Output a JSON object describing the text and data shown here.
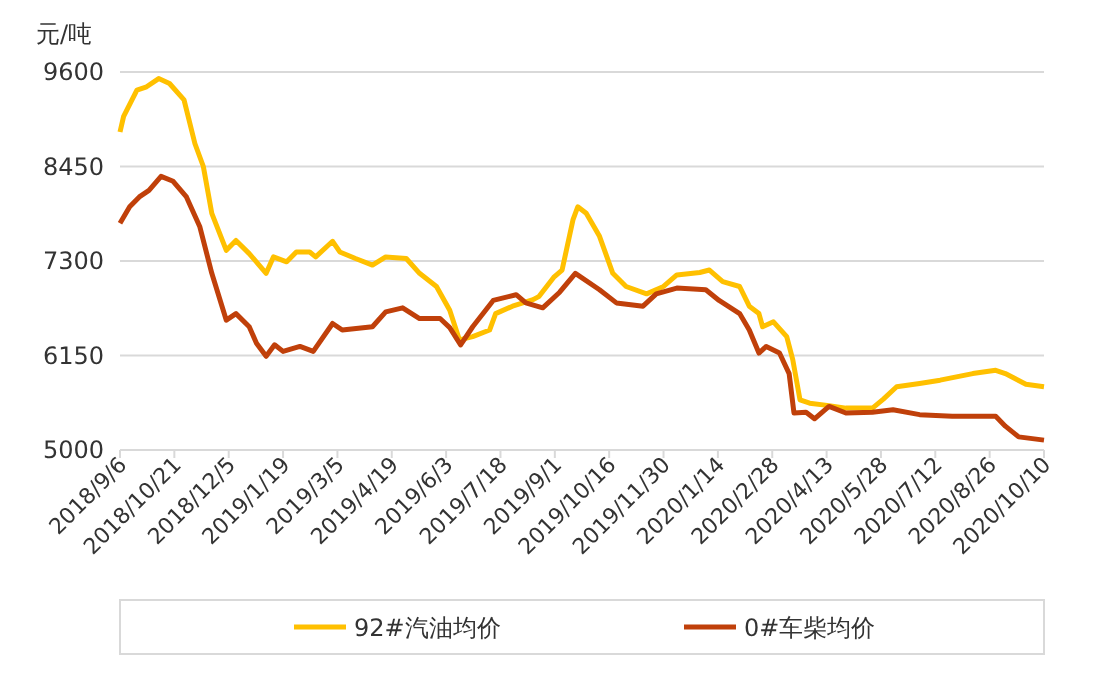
{
  "chart_data": {
    "type": "line",
    "ylabel": "元/吨",
    "ylim": [
      5000,
      9600
    ],
    "yticks": [
      5000,
      6150,
      7300,
      8450,
      9600
    ],
    "grid": "y",
    "legend": "bottom",
    "xlim": [
      "2018-09-06",
      "2020-10-10"
    ],
    "xticks": [
      {
        "value": "2018-09-06",
        "label": "2018/9/6"
      },
      {
        "value": "2018-10-21",
        "label": "2018/10/21"
      },
      {
        "value": "2018-12-05",
        "label": "2018/12/5"
      },
      {
        "value": "2019-01-19",
        "label": "2019/1/19"
      },
      {
        "value": "2019-03-05",
        "label": "2019/3/5"
      },
      {
        "value": "2019-04-19",
        "label": "2019/4/19"
      },
      {
        "value": "2019-06-03",
        "label": "2019/6/3"
      },
      {
        "value": "2019-07-18",
        "label": "2019/7/18"
      },
      {
        "value": "2019-09-01",
        "label": "2019/9/1"
      },
      {
        "value": "2019-10-16",
        "label": "2019/10/16"
      },
      {
        "value": "2019-11-30",
        "label": "2019/11/30"
      },
      {
        "value": "2020-01-14",
        "label": "2020/1/14"
      },
      {
        "value": "2020-02-28",
        "label": "2020/2/28"
      },
      {
        "value": "2020-04-13",
        "label": "2020/4/13"
      },
      {
        "value": "2020-05-28",
        "label": "2020/5/28"
      },
      {
        "value": "2020-07-12",
        "label": "2020/7/12"
      },
      {
        "value": "2020-08-26",
        "label": "2020/8/26"
      },
      {
        "value": "2020-10-10",
        "label": "2020/10/10"
      }
    ],
    "series": [
      {
        "name": "92#汽油均价",
        "color": "#ffc000",
        "x": [
          "2018-09-06",
          "2018-09-09",
          "2018-09-20",
          "2018-09-28",
          "2018-10-08",
          "2018-10-17",
          "2018-10-29",
          "2018-11-07",
          "2018-11-14",
          "2018-11-21",
          "2018-12-03",
          "2018-12-11",
          "2018-12-22",
          "2019-01-05",
          "2019-01-11",
          "2019-01-22",
          "2019-01-30",
          "2019-02-10",
          "2019-02-15",
          "2019-03-01",
          "2019-03-07",
          "2019-03-20",
          "2019-04-03",
          "2019-04-14",
          "2019-05-01",
          "2019-05-12",
          "2019-05-26",
          "2019-06-06",
          "2019-06-14",
          "2019-06-25",
          "2019-07-09",
          "2019-07-14",
          "2019-07-28",
          "2019-08-14",
          "2019-08-19",
          "2019-08-31",
          "2019-09-07",
          "2019-09-16",
          "2019-09-20",
          "2019-09-27",
          "2019-10-08",
          "2019-10-19",
          "2019-10-30",
          "2019-11-16",
          "2019-11-30",
          "2019-12-11",
          "2019-12-30",
          "2020-01-07",
          "2020-01-18",
          "2020-02-01",
          "2020-02-09",
          "2020-02-17",
          "2020-02-20",
          "2020-02-29",
          "2020-03-11",
          "2020-03-16",
          "2020-03-22",
          "2020-03-30",
          "2020-04-15",
          "2020-04-29",
          "2020-05-21",
          "2020-05-30",
          "2020-06-10",
          "2020-06-29",
          "2020-07-16",
          "2020-08-12",
          "2020-08-31",
          "2020-09-08",
          "2020-09-25",
          "2020-10-10"
        ],
        "values": [
          8870,
          9060,
          9380,
          9420,
          9520,
          9460,
          9260,
          8730,
          8450,
          7880,
          7430,
          7550,
          7390,
          7150,
          7350,
          7290,
          7410,
          7410,
          7350,
          7540,
          7410,
          7330,
          7250,
          7350,
          7330,
          7150,
          6990,
          6700,
          6340,
          6380,
          6460,
          6660,
          6750,
          6830,
          6870,
          7100,
          7190,
          7800,
          7960,
          7880,
          7600,
          7150,
          6990,
          6900,
          6990,
          7130,
          7160,
          7190,
          7050,
          6990,
          6750,
          6660,
          6500,
          6560,
          6380,
          6100,
          5610,
          5570,
          5540,
          5510,
          5510,
          5620,
          5770,
          5810,
          5850,
          5930,
          5970,
          5930,
          5800,
          5770
        ]
      },
      {
        "name": "0#车柴均价",
        "color": "#c0400a",
        "x": [
          "2018-09-06",
          "2018-09-14",
          "2018-09-22",
          "2018-09-30",
          "2018-10-10",
          "2018-10-20",
          "2018-10-31",
          "2018-11-11",
          "2018-11-21",
          "2018-12-03",
          "2018-12-11",
          "2018-12-22",
          "2018-12-28",
          "2019-01-05",
          "2019-01-12",
          "2019-01-19",
          "2019-02-02",
          "2019-02-13",
          "2019-03-01",
          "2019-03-09",
          "2019-04-03",
          "2019-04-14",
          "2019-04-28",
          "2019-05-12",
          "2019-05-29",
          "2019-06-06",
          "2019-06-15",
          "2019-06-25",
          "2019-07-12",
          "2019-07-31",
          "2019-08-08",
          "2019-08-22",
          "2019-09-05",
          "2019-09-18",
          "2019-10-08",
          "2019-10-22",
          "2019-11-13",
          "2019-11-24",
          "2019-12-11",
          "2020-01-04",
          "2020-01-15",
          "2020-02-01",
          "2020-02-09",
          "2020-02-17",
          "2020-02-23",
          "2020-03-05",
          "2020-03-13",
          "2020-03-17",
          "2020-03-27",
          "2020-04-03",
          "2020-04-15",
          "2020-04-29",
          "2020-05-21",
          "2020-06-07",
          "2020-06-29",
          "2020-07-26",
          "2020-08-31",
          "2020-09-08",
          "2020-09-19",
          "2020-10-10"
        ],
        "values": [
          7760,
          7960,
          8080,
          8160,
          8330,
          8270,
          8080,
          7720,
          7150,
          6580,
          6660,
          6500,
          6300,
          6140,
          6280,
          6200,
          6260,
          6200,
          6540,
          6460,
          6500,
          6680,
          6730,
          6600,
          6600,
          6490,
          6280,
          6500,
          6820,
          6890,
          6790,
          6730,
          6920,
          7150,
          6950,
          6790,
          6750,
          6900,
          6970,
          6950,
          6820,
          6660,
          6460,
          6180,
          6260,
          6180,
          5930,
          5450,
          5460,
          5380,
          5530,
          5450,
          5460,
          5490,
          5430,
          5410,
          5410,
          5290,
          5160,
          5120
        ]
      }
    ]
  }
}
